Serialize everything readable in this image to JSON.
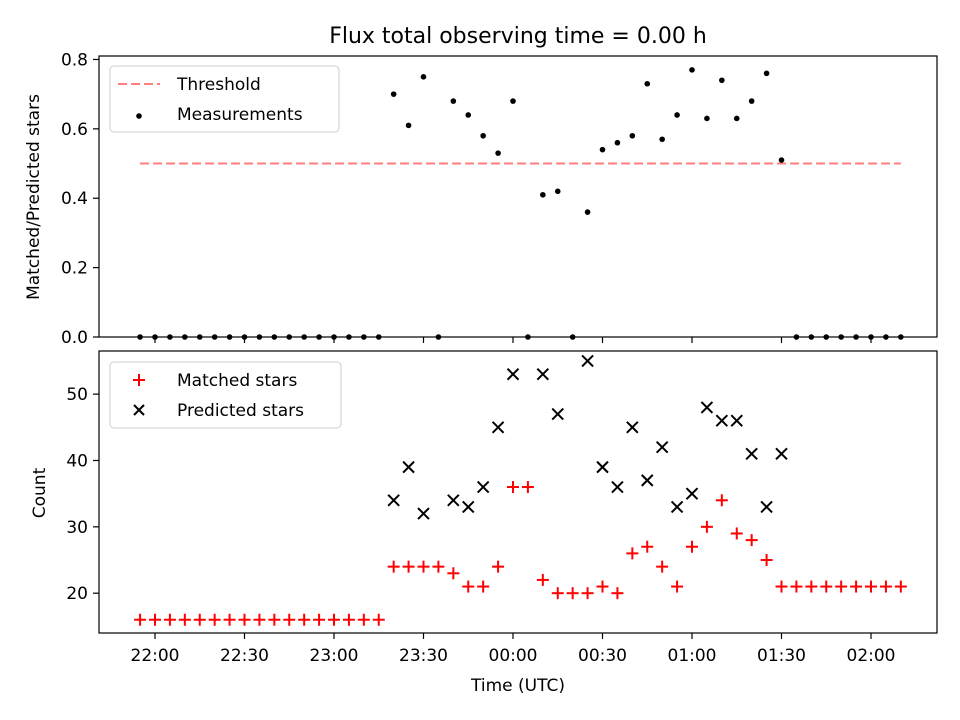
{
  "figure": {
    "title": "Flux total observing time = 0.00 h"
  },
  "chart_data": [
    {
      "type": "scatter",
      "ylabel": "Matched/Predicted stars",
      "xlabel": "",
      "ylim": [
        0,
        0.81
      ],
      "yticks": [
        0.0,
        0.2,
        0.4,
        0.6,
        0.8
      ],
      "ytick_labels": [
        "0.0",
        "0.2",
        "0.4",
        "0.6",
        "0.8"
      ],
      "legend_position": "upper-left",
      "legend": [
        {
          "name": "Threshold",
          "marker": "dashed-line",
          "color": "#ff7f7f"
        },
        {
          "name": "Measurements",
          "marker": "dot",
          "color": "#000000"
        }
      ],
      "threshold": {
        "name": "Threshold",
        "value": 0.5,
        "x_start": "21:55",
        "x_end": "02:10",
        "color": "#ff7f7f"
      },
      "series": [
        {
          "name": "Measurements",
          "color": "#000000",
          "marker": "dot",
          "x": [
            "21:55",
            "22:00",
            "22:05",
            "22:10",
            "22:15",
            "22:20",
            "22:25",
            "22:30",
            "22:35",
            "22:40",
            "22:45",
            "22:50",
            "22:55",
            "23:00",
            "23:05",
            "23:10",
            "23:15",
            "23:20",
            "23:25",
            "23:30",
            "23:35",
            "23:40",
            "23:45",
            "23:50",
            "23:55",
            "00:00",
            "00:05",
            "00:10",
            "00:15",
            "00:20",
            "00:25",
            "00:30",
            "00:35",
            "00:40",
            "00:45",
            "00:50",
            "00:55",
            "01:00",
            "01:05",
            "01:10",
            "01:15",
            "01:20",
            "01:25",
            "01:30",
            "01:35",
            "01:40",
            "01:45",
            "01:50",
            "01:55",
            "02:00",
            "02:05",
            "02:10"
          ],
          "y": [
            0,
            0,
            0,
            0,
            0,
            0,
            0,
            0,
            0,
            0,
            0,
            0,
            0,
            0,
            0,
            0,
            0,
            0.7,
            0.61,
            0.75,
            0,
            0.68,
            0.64,
            0.58,
            0.53,
            0.68,
            0,
            0.41,
            0.42,
            0,
            0.36,
            0.54,
            0.56,
            0.58,
            0.73,
            0.57,
            0.64,
            0.77,
            0.63,
            0.74,
            0.63,
            0.68,
            0.76,
            0.51,
            0,
            0,
            0,
            0,
            0,
            0,
            0,
            0
          ]
        }
      ]
    },
    {
      "type": "scatter",
      "ylabel": "Count",
      "xlabel": "Time (UTC)",
      "ylim": [
        14,
        56.5
      ],
      "yticks": [
        20,
        30,
        40,
        50
      ],
      "ytick_labels": [
        "20",
        "30",
        "40",
        "50"
      ],
      "xticks": [
        "22:00",
        "22:30",
        "23:00",
        "23:30",
        "00:00",
        "00:30",
        "01:00",
        "01:30",
        "02:00"
      ],
      "legend_position": "upper-left",
      "series": [
        {
          "name": "Matched stars",
          "color": "#ff0000",
          "marker": "plus",
          "x": [
            "21:55",
            "22:00",
            "22:05",
            "22:10",
            "22:15",
            "22:20",
            "22:25",
            "22:30",
            "22:35",
            "22:40",
            "22:45",
            "22:50",
            "22:55",
            "23:00",
            "23:05",
            "23:10",
            "23:15",
            "23:20",
            "23:25",
            "23:30",
            "23:35",
            "23:40",
            "23:45",
            "23:50",
            "23:55",
            "00:00",
            "00:05",
            "00:10",
            "00:15",
            "00:20",
            "00:25",
            "00:30",
            "00:35",
            "00:40",
            "00:45",
            "00:50",
            "00:55",
            "01:00",
            "01:05",
            "01:10",
            "01:15",
            "01:20",
            "01:25",
            "01:30",
            "01:35",
            "01:40",
            "01:45",
            "01:50",
            "01:55",
            "02:00",
            "02:05",
            "02:10"
          ],
          "y": [
            16,
            16,
            16,
            16,
            16,
            16,
            16,
            16,
            16,
            16,
            16,
            16,
            16,
            16,
            16,
            16,
            16,
            24,
            24,
            24,
            24,
            23,
            21,
            21,
            24,
            36,
            36,
            22,
            20,
            20,
            20,
            21,
            20,
            26,
            27,
            24,
            21,
            27,
            30,
            34,
            29,
            28,
            25,
            21,
            21,
            21,
            21,
            21,
            21,
            21,
            21,
            21
          ]
        },
        {
          "name": "Predicted stars",
          "color": "#000000",
          "marker": "x",
          "x": [
            "23:20",
            "23:25",
            "23:30",
            "23:40",
            "23:45",
            "23:50",
            "23:55",
            "00:00",
            "00:10",
            "00:15",
            "00:25",
            "00:30",
            "00:35",
            "00:40",
            "00:45",
            "00:50",
            "00:55",
            "01:00",
            "01:05",
            "01:10",
            "01:15",
            "01:20",
            "01:25",
            "01:30"
          ],
          "y": [
            34,
            39,
            32,
            34,
            33,
            36,
            45,
            53,
            53,
            47,
            55,
            39,
            36,
            45,
            37,
            42,
            33,
            35,
            48,
            46,
            46,
            41,
            33,
            41
          ]
        }
      ]
    }
  ]
}
